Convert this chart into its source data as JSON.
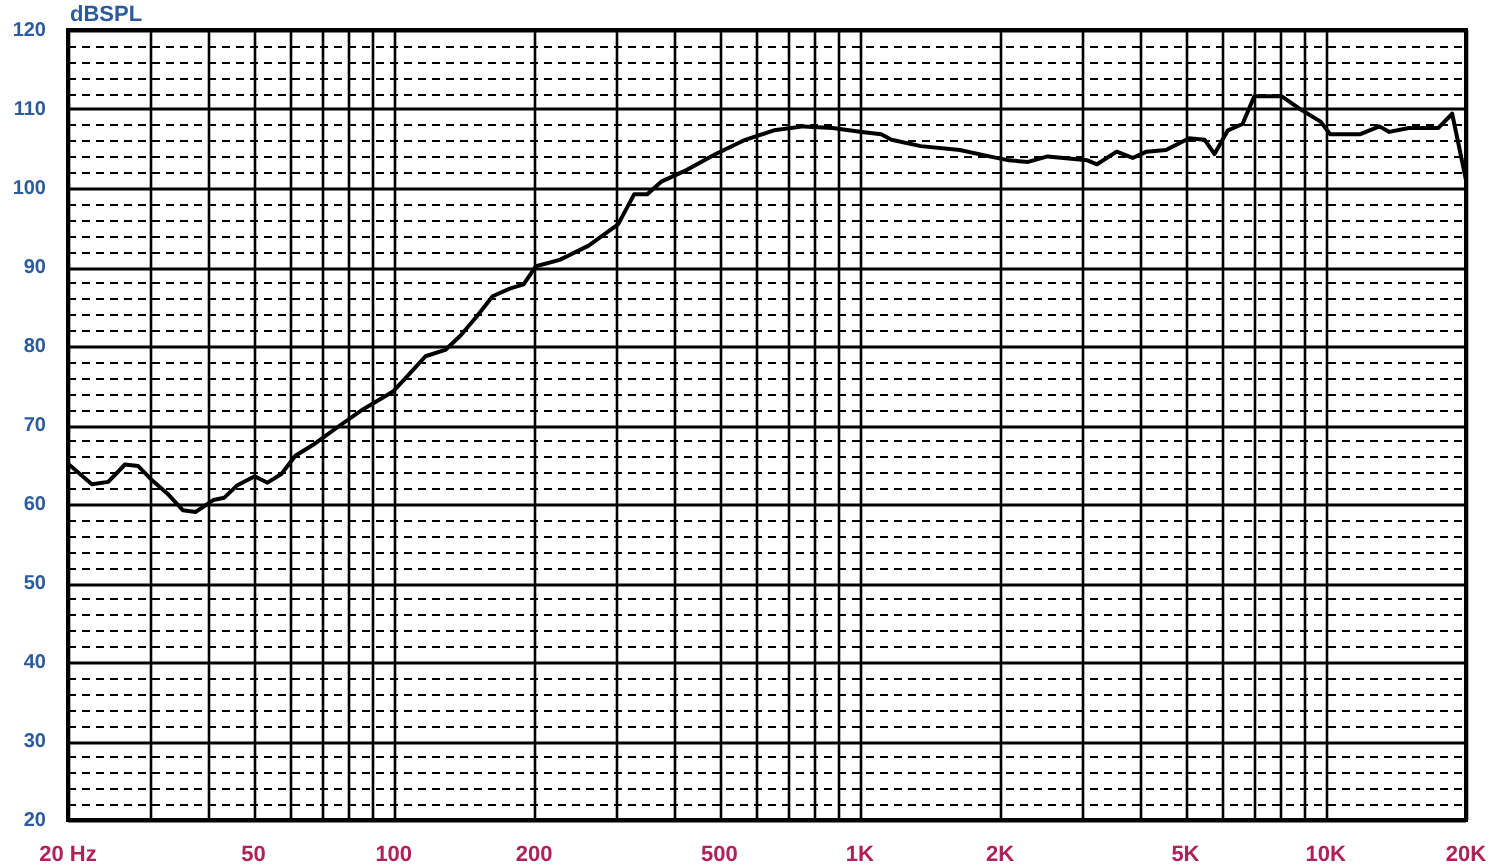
{
  "chart_data": {
    "type": "line",
    "ylabel": "dBSPL",
    "log": "x",
    "grid": true,
    "marker": "none",
    "line_style": "solid",
    "color": "#000000",
    "x": [
      20,
      22.5,
      24.4,
      26.5,
      28.3,
      30.3,
      32.7,
      35.3,
      37.6,
      41,
      43.3,
      46,
      50.3,
      53.6,
      57.4,
      61.5,
      67.6,
      76.9,
      86,
      99.5,
      107,
      117,
      129,
      139,
      151,
      163,
      178,
      190,
      202,
      227,
      262,
      303,
      328,
      350,
      375,
      426,
      491,
      568,
      655,
      757,
      875,
      1010,
      1112,
      1170,
      1352,
      1640,
      1897,
      2090,
      2298,
      2530,
      3080,
      3230,
      3560,
      3852,
      4126,
      4542,
      5090,
      5500,
      5772,
      6167,
      6630,
      7026,
      8050,
      8860,
      9750,
      10220,
      11830,
      13040,
      13690,
      15080,
      17450,
      18680,
      20000
    ],
    "values": [
      65.1,
      62.5,
      62.8,
      65,
      64.8,
      63,
      61.3,
      59.2,
      59,
      60.5,
      60.8,
      62.3,
      63.5,
      62.7,
      63.8,
      66.1,
      67.6,
      70,
      72,
      74.2,
      76.2,
      78.7,
      79.5,
      81.3,
      83.8,
      86.3,
      87.3,
      87.8,
      90.1,
      90.9,
      92.7,
      95.4,
      99.2,
      99.2,
      100.8,
      102.3,
      104.3,
      106.1,
      107.3,
      107.8,
      107.6,
      107.1,
      106.8,
      106.1,
      105.3,
      104.8,
      104,
      103.5,
      103.3,
      104,
      103.5,
      103,
      104.6,
      103.8,
      104.6,
      104.8,
      106.3,
      106.1,
      104.3,
      107.3,
      108.1,
      111.6,
      111.6,
      109.9,
      108.4,
      106.8,
      106.8,
      107.8,
      107.1,
      107.6,
      107.6,
      109.4,
      101
    ],
    "xlim": [
      20,
      20000
    ],
    "xticks": [
      {
        "value": 20,
        "label": "20 Hz"
      },
      {
        "value": 30,
        "label": null
      },
      {
        "value": 40,
        "label": null
      },
      50,
      {
        "value": 60,
        "label": null
      },
      {
        "value": 70,
        "label": null
      },
      {
        "value": 80,
        "label": null
      },
      {
        "value": 90,
        "label": null
      },
      100,
      200,
      {
        "value": 300,
        "label": null
      },
      {
        "value": 400,
        "label": null
      },
      500,
      {
        "value": 600,
        "label": null
      },
      {
        "value": 700,
        "label": null
      },
      {
        "value": 800,
        "label": null
      },
      {
        "value": 900,
        "label": null
      },
      {
        "value": 1000,
        "label": "1K"
      },
      {
        "value": 2000,
        "label": "2K"
      },
      {
        "value": 3000,
        "label": null
      },
      {
        "value": 4000,
        "label": null
      },
      {
        "value": 5000,
        "label": "5K"
      },
      {
        "value": 6000,
        "label": null
      },
      {
        "value": 7000,
        "label": null
      },
      {
        "value": 8000,
        "label": null
      },
      {
        "value": 9000,
        "label": null
      },
      {
        "value": 10000,
        "label": "10K"
      },
      {
        "value": 20000,
        "label": "20K"
      }
    ],
    "ylim": [
      20,
      120
    ],
    "yticks": [
      20,
      {
        "value": 22,
        "label": null
      },
      {
        "value": 24,
        "label": null
      },
      {
        "value": 26,
        "label": null
      },
      {
        "value": 28,
        "label": null
      },
      30,
      {
        "value": 32,
        "label": null
      },
      {
        "value": 34,
        "label": null
      },
      {
        "value": 36,
        "label": null
      },
      {
        "value": 38,
        "label": null
      },
      40,
      {
        "value": 42,
        "label": null
      },
      {
        "value": 44,
        "label": null
      },
      {
        "value": 46,
        "label": null
      },
      {
        "value": 48,
        "label": null
      },
      50,
      {
        "value": 52,
        "label": null
      },
      {
        "value": 54,
        "label": null
      },
      {
        "value": 56,
        "label": null
      },
      {
        "value": 58,
        "label": null
      },
      60,
      {
        "value": 62,
        "label": null
      },
      {
        "value": 64,
        "label": null
      },
      {
        "value": 66,
        "label": null
      },
      {
        "value": 68,
        "label": null
      },
      70,
      {
        "value": 72,
        "label": null
      },
      {
        "value": 74,
        "label": null
      },
      {
        "value": 76,
        "label": null
      },
      {
        "value": 78,
        "label": null
      },
      80,
      {
        "value": 82,
        "label": null
      },
      {
        "value": 84,
        "label": null
      },
      {
        "value": 86,
        "label": null
      },
      {
        "value": 88,
        "label": null
      },
      90,
      {
        "value": 92,
        "label": null
      },
      {
        "value": 94,
        "label": null
      },
      {
        "value": 96,
        "label": null
      },
      {
        "value": 98,
        "label": null
      },
      100,
      {
        "value": 102,
        "label": null
      },
      {
        "value": 104,
        "label": null
      },
      {
        "value": 106,
        "label": null
      },
      {
        "value": 108,
        "label": null
      },
      110,
      {
        "value": 112,
        "label": null
      },
      {
        "value": 114,
        "label": null
      },
      {
        "value": 116,
        "label": null
      },
      {
        "value": 118,
        "label": null
      },
      120
    ]
  }
}
